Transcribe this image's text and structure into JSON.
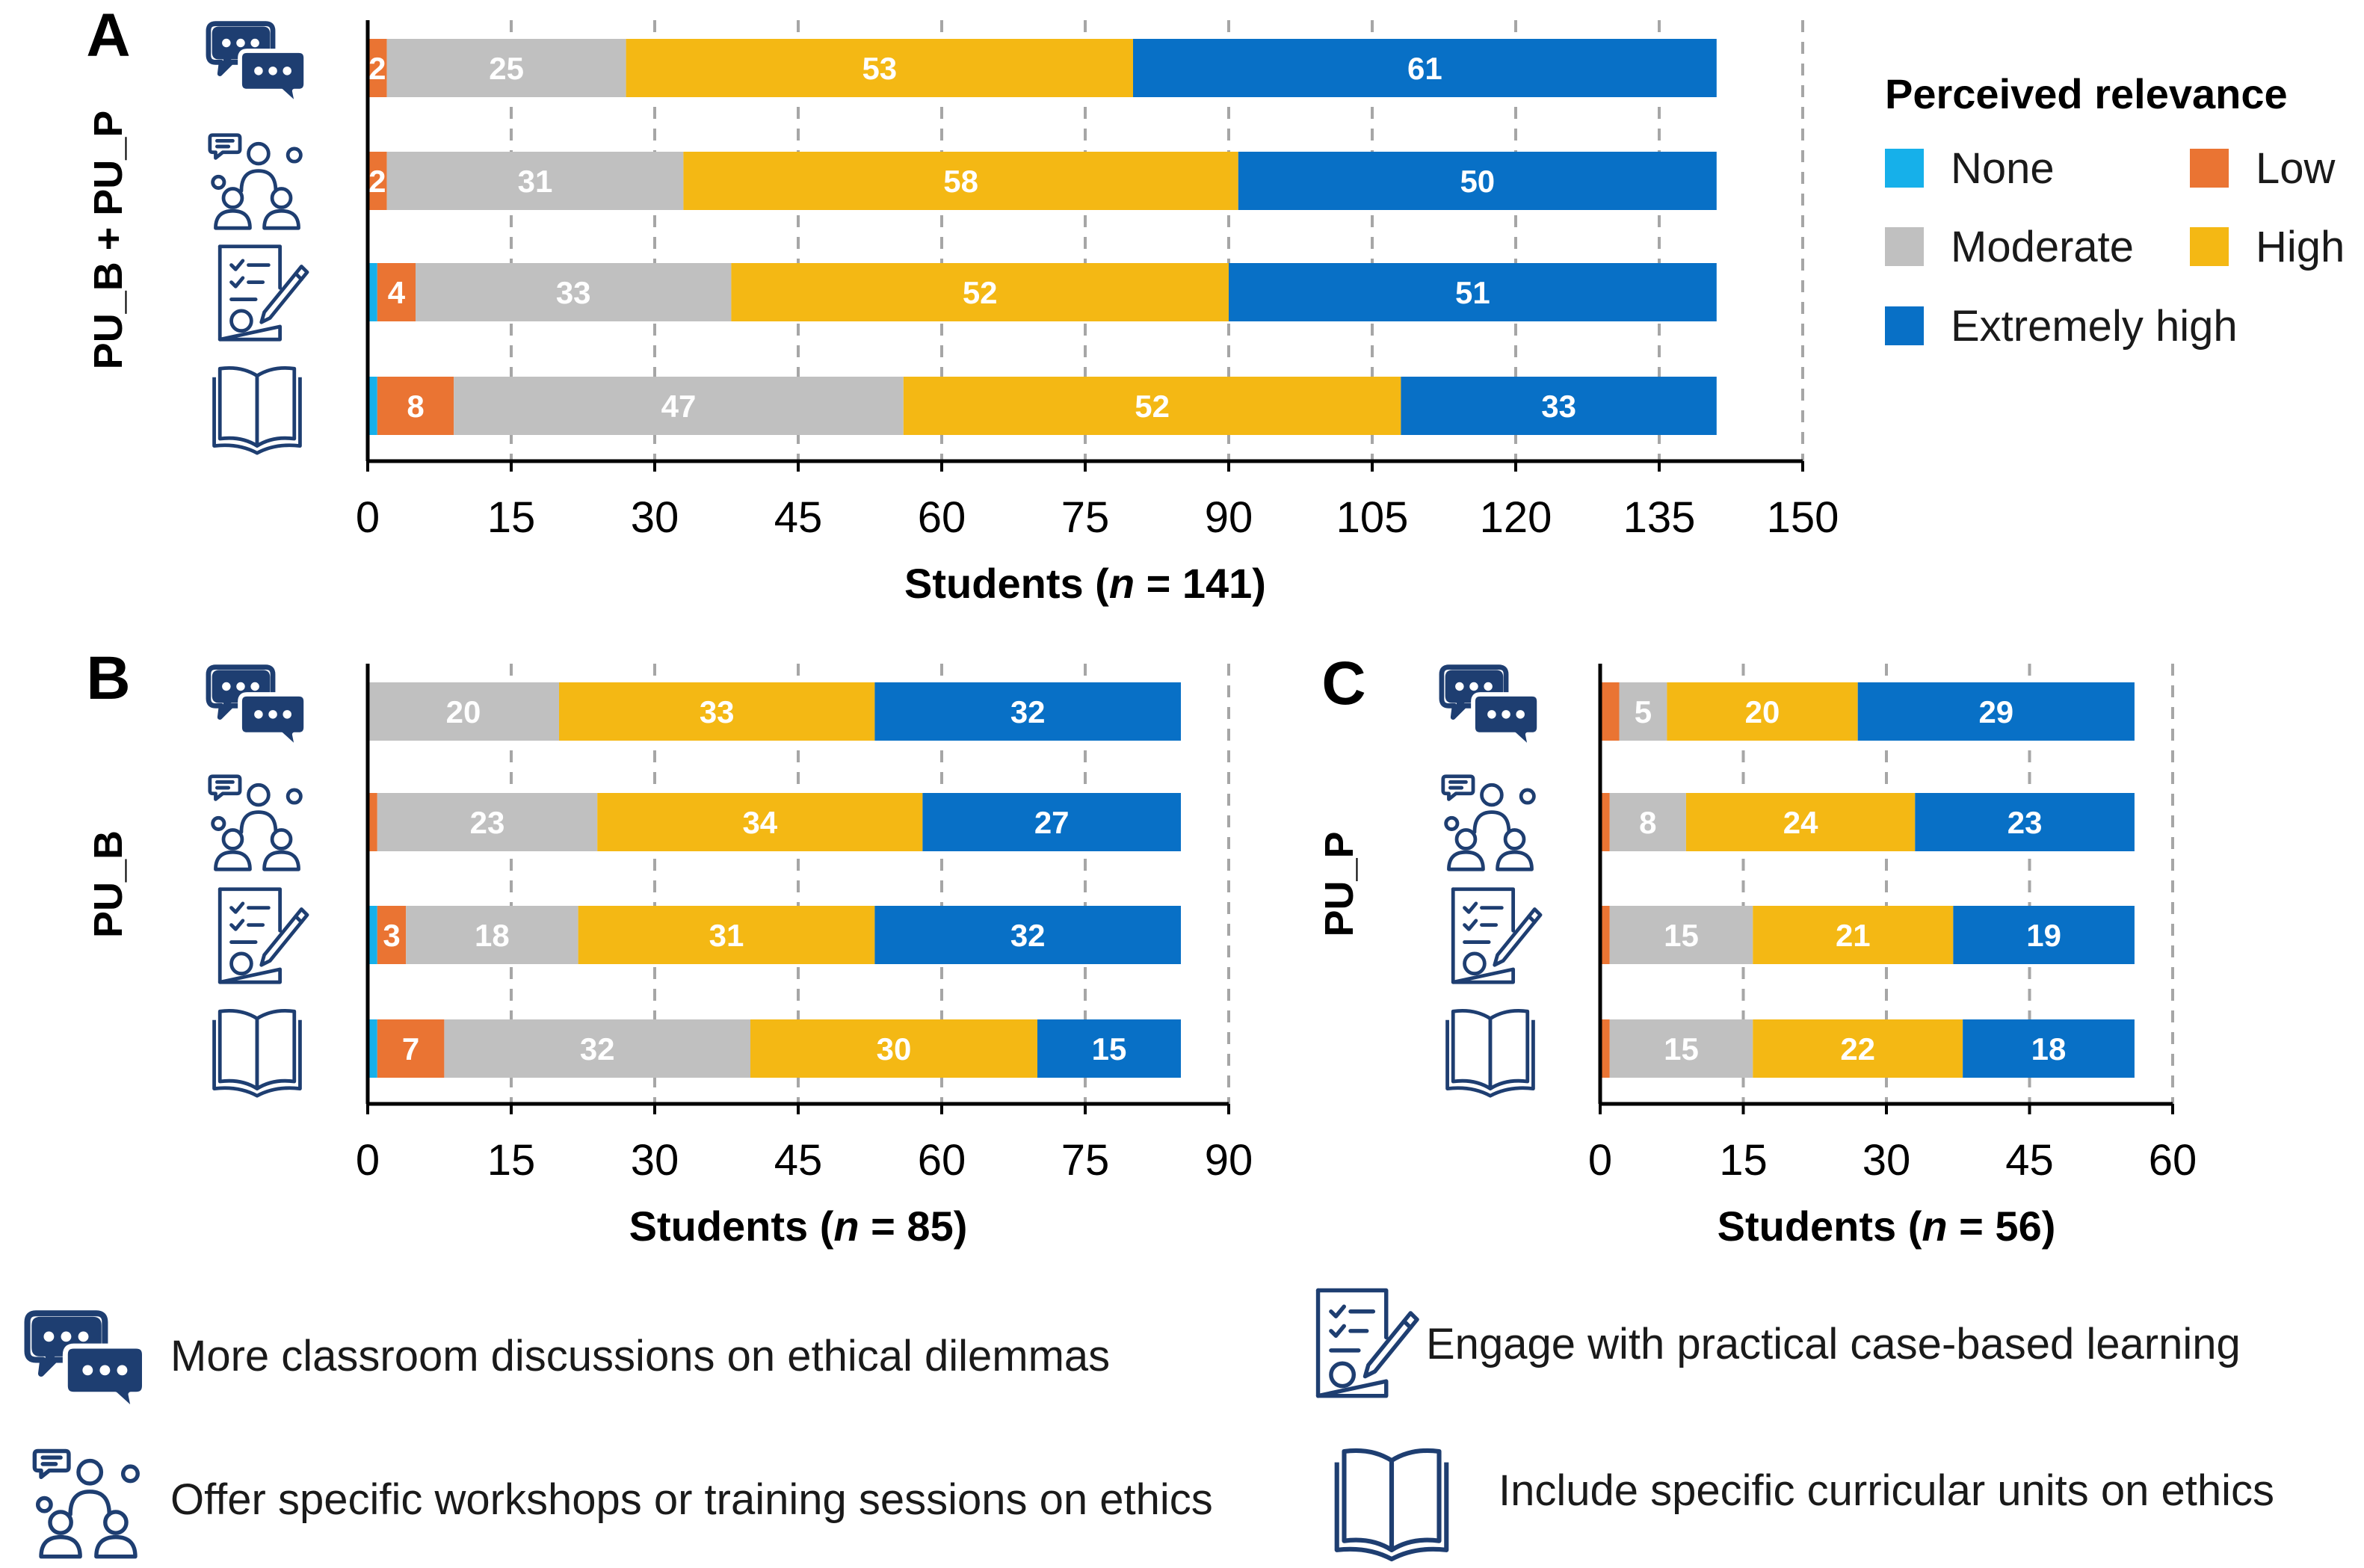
{
  "legend": {
    "title": "Perceived relevance",
    "items": [
      {
        "label": "None",
        "color": "#16b0ea"
      },
      {
        "label": "Low",
        "color": "#ea7433"
      },
      {
        "label": "Moderate",
        "color": "#c0c0c0"
      },
      {
        "label": "High",
        "color": "#f4b814"
      },
      {
        "label": "Extremely high",
        "color": "#0870c6"
      }
    ]
  },
  "key": [
    {
      "icon": "discussion-bubbles-icon",
      "label": "More classroom discussions on ethical dilemmas"
    },
    {
      "icon": "workshop-group-icon",
      "label": "Offer specific workshops or training sessions on ethics"
    },
    {
      "icon": "case-document-pencil-icon",
      "label": "Engage with practical case-based learning"
    },
    {
      "icon": "open-book-icon",
      "label": "Include specific curricular units on ethics"
    }
  ],
  "chart_data": [
    {
      "type": "bar",
      "orientation": "horizontal",
      "stacked": true,
      "panel_label": "A",
      "ylabel": "PU_B + PU_P",
      "xlabel_prefix": "Students (",
      "xlabel_n": "n",
      "xlabel_suffix": " = 141)",
      "xlim": [
        0,
        150
      ],
      "xticks": [
        0,
        15,
        30,
        45,
        60,
        75,
        90,
        105,
        120,
        135,
        150
      ],
      "grid": "vertical-dashed",
      "categories": [
        "discussion-bubbles-icon",
        "workshop-group-icon",
        "case-document-pencil-icon",
        "open-book-icon"
      ],
      "series": [
        {
          "name": "None",
          "color": "#16b0ea",
          "values": [
            0,
            0,
            1,
            1
          ]
        },
        {
          "name": "Low",
          "color": "#ea7433",
          "values": [
            2,
            2,
            4,
            8
          ]
        },
        {
          "name": "Moderate",
          "color": "#c0c0c0",
          "values": [
            25,
            31,
            33,
            47
          ]
        },
        {
          "name": "High",
          "color": "#f4b814",
          "values": [
            53,
            58,
            52,
            52
          ]
        },
        {
          "name": "Extremely high",
          "color": "#0870c6",
          "values": [
            61,
            50,
            51,
            33
          ]
        }
      ],
      "data_labels": [
        [
          null,
          "2",
          "25",
          "53",
          "61"
        ],
        [
          null,
          "2",
          "31",
          "58",
          "50"
        ],
        [
          null,
          "4",
          "33",
          "52",
          "51"
        ],
        [
          null,
          "8",
          "47",
          "52",
          "33"
        ]
      ]
    },
    {
      "type": "bar",
      "orientation": "horizontal",
      "stacked": true,
      "panel_label": "B",
      "ylabel": "PU_B",
      "xlabel_prefix": "Students (",
      "xlabel_n": "n",
      "xlabel_suffix": " = 85)",
      "xlim": [
        0,
        90
      ],
      "xticks": [
        0,
        15,
        30,
        45,
        60,
        75,
        90
      ],
      "grid": "vertical-dashed",
      "categories": [
        "discussion-bubbles-icon",
        "workshop-group-icon",
        "case-document-pencil-icon",
        "open-book-icon"
      ],
      "series": [
        {
          "name": "None",
          "color": "#16b0ea",
          "values": [
            0,
            0,
            1,
            1
          ]
        },
        {
          "name": "Low",
          "color": "#ea7433",
          "values": [
            0,
            1,
            3,
            7
          ]
        },
        {
          "name": "Moderate",
          "color": "#c0c0c0",
          "values": [
            20,
            23,
            18,
            32
          ]
        },
        {
          "name": "High",
          "color": "#f4b814",
          "values": [
            33,
            34,
            31,
            30
          ]
        },
        {
          "name": "Extremely high",
          "color": "#0870c6",
          "values": [
            32,
            27,
            32,
            15
          ]
        }
      ],
      "data_labels": [
        [
          null,
          null,
          "20",
          "33",
          "32"
        ],
        [
          null,
          null,
          "23",
          "34",
          "27"
        ],
        [
          null,
          "3",
          "18",
          "31",
          "32"
        ],
        [
          null,
          "7",
          "32",
          "30",
          "15"
        ]
      ]
    },
    {
      "type": "bar",
      "orientation": "horizontal",
      "stacked": true,
      "panel_label": "C",
      "ylabel": "PU_P",
      "xlabel_prefix": "Students (",
      "xlabel_n": "n",
      "xlabel_suffix": " = 56)",
      "xlim": [
        0,
        60
      ],
      "xticks": [
        0,
        15,
        30,
        45,
        60
      ],
      "grid": "vertical-dashed",
      "categories": [
        "discussion-bubbles-icon",
        "workshop-group-icon",
        "case-document-pencil-icon",
        "open-book-icon"
      ],
      "series": [
        {
          "name": "None",
          "color": "#16b0ea",
          "values": [
            0,
            0,
            0,
            0
          ]
        },
        {
          "name": "Low",
          "color": "#ea7433",
          "values": [
            2,
            1,
            1,
            1
          ]
        },
        {
          "name": "Moderate",
          "color": "#c0c0c0",
          "values": [
            5,
            8,
            15,
            15
          ]
        },
        {
          "name": "High",
          "color": "#f4b814",
          "values": [
            20,
            24,
            21,
            22
          ]
        },
        {
          "name": "Extremely high",
          "color": "#0870c6",
          "values": [
            29,
            23,
            19,
            18
          ]
        }
      ],
      "data_labels": [
        [
          null,
          null,
          "5",
          "20",
          "29"
        ],
        [
          null,
          null,
          "8",
          "24",
          "23"
        ],
        [
          null,
          null,
          "15",
          "21",
          "19"
        ],
        [
          null,
          null,
          "15",
          "22",
          "18"
        ]
      ]
    }
  ]
}
